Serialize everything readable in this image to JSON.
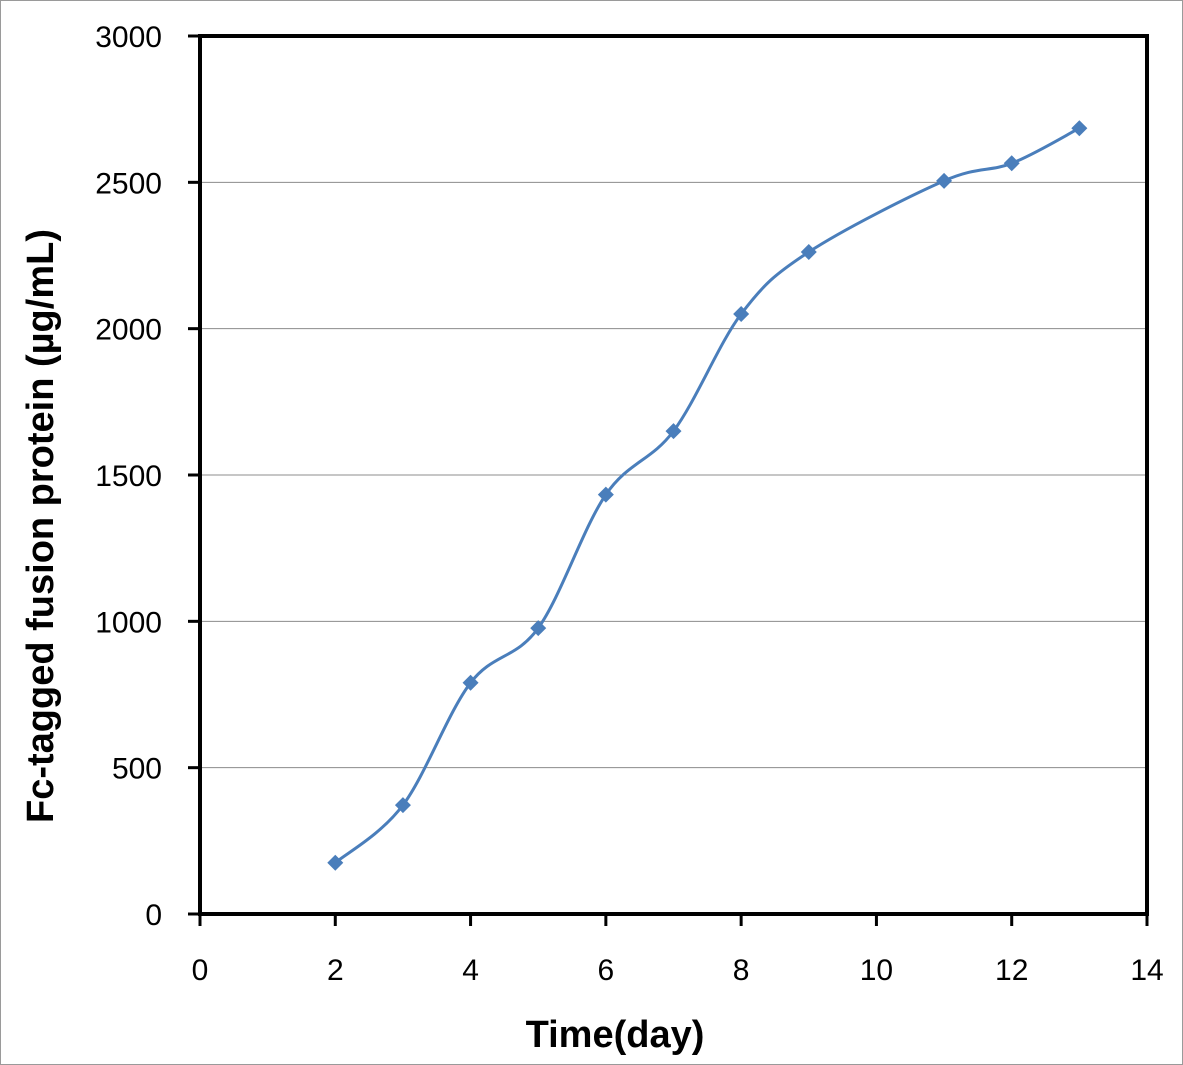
{
  "chart_data": {
    "type": "line",
    "title": "",
    "xlabel": "Time(day)",
    "ylabel": "Fc-tagged fusion protein (µg/mL)",
    "xlim": [
      0,
      14
    ],
    "ylim": [
      0,
      3000
    ],
    "x_ticks": [
      "0",
      "2",
      "4",
      "6",
      "8",
      "10",
      "12",
      "14"
    ],
    "y_ticks": [
      "0",
      "500",
      "1000",
      "1500",
      "2000",
      "2500",
      "3000"
    ],
    "grid": "horizontal",
    "smooth": true,
    "marker": "diamond",
    "series": [
      {
        "color": "#4a7ebb",
        "x": [
          2,
          3,
          4,
          5,
          6,
          7,
          8,
          9,
          11,
          12,
          13
        ],
        "y": [
          175,
          372,
          790,
          977,
          1433,
          1650,
          2050,
          2262,
          2505,
          2565,
          2685
        ]
      }
    ]
  }
}
